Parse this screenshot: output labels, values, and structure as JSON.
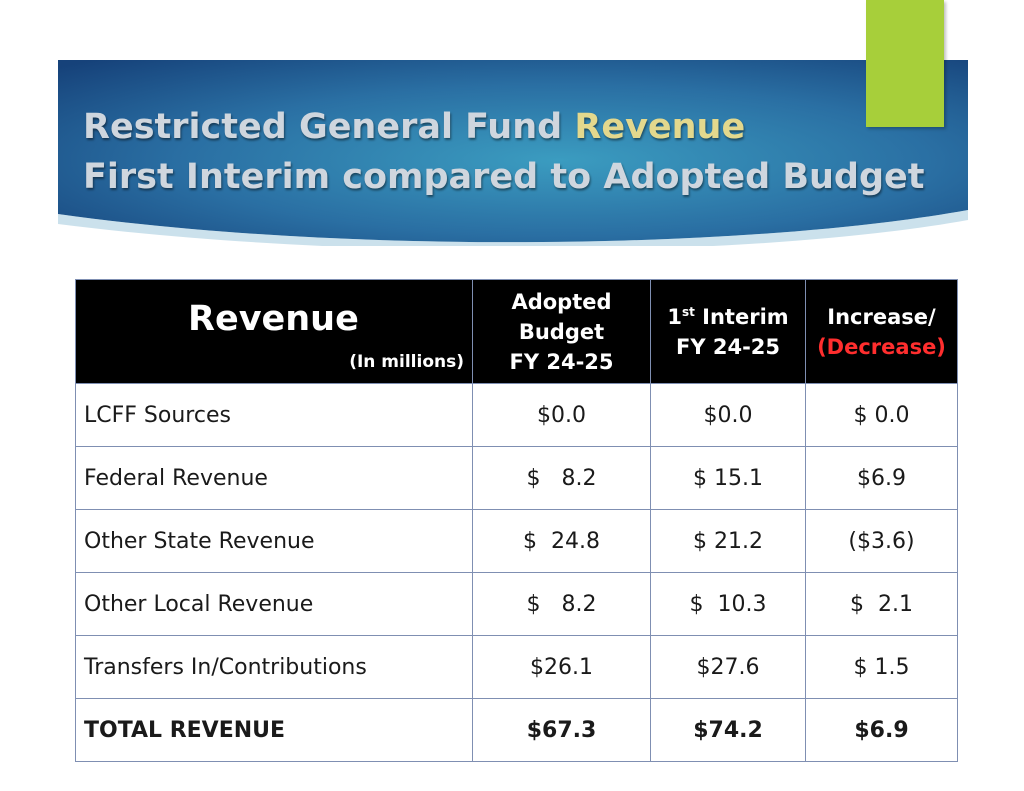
{
  "header": {
    "title_line1_prefix": "Restricted General Fund ",
    "title_line1_highlight": "Revenue",
    "title_line2": "First Interim compared to Adopted Budget"
  },
  "colors": {
    "banner_dark": "#1b4f84",
    "banner_mid": "#2e86b0",
    "accent_green": "#a7cf3a",
    "highlight_gold": "#e3d88d",
    "negative_red": "#e01b1b"
  },
  "table": {
    "header": {
      "revenue": "Revenue",
      "units": "(In millions)",
      "adopted_l1": "Adopted",
      "adopted_l2": "Budget",
      "adopted_l3": "FY 24-25",
      "interim_num": "1",
      "interim_sup": "st",
      "interim_word": " Interim",
      "interim_l2": "FY 24-25",
      "inc_l1": "Increase/",
      "inc_l2": "(Decrease)"
    },
    "rows": [
      {
        "label": "LCFF Sources",
        "adopted": "$0.0",
        "interim": "$0.0",
        "change": "$ 0.0"
      },
      {
        "label": "Federal Revenue",
        "adopted": "$   8.2",
        "interim": "$ 15.1",
        "change": "$6.9"
      },
      {
        "label": "Other State Revenue",
        "adopted": "$  24.8",
        "interim": "$ 21.2",
        "change": "($3.6)"
      },
      {
        "label": "Other Local Revenue",
        "adopted": "$   8.2",
        "interim": "$  10.3",
        "change": "$  2.1"
      },
      {
        "label": "Transfers In/Contributions",
        "adopted": "$26.1",
        "interim": "$27.6",
        "change": "$ 1.5"
      },
      {
        "label": "TOTAL REVENUE",
        "adopted": "$67.3",
        "interim": "$74.2",
        "change": "$6.9"
      }
    ]
  }
}
